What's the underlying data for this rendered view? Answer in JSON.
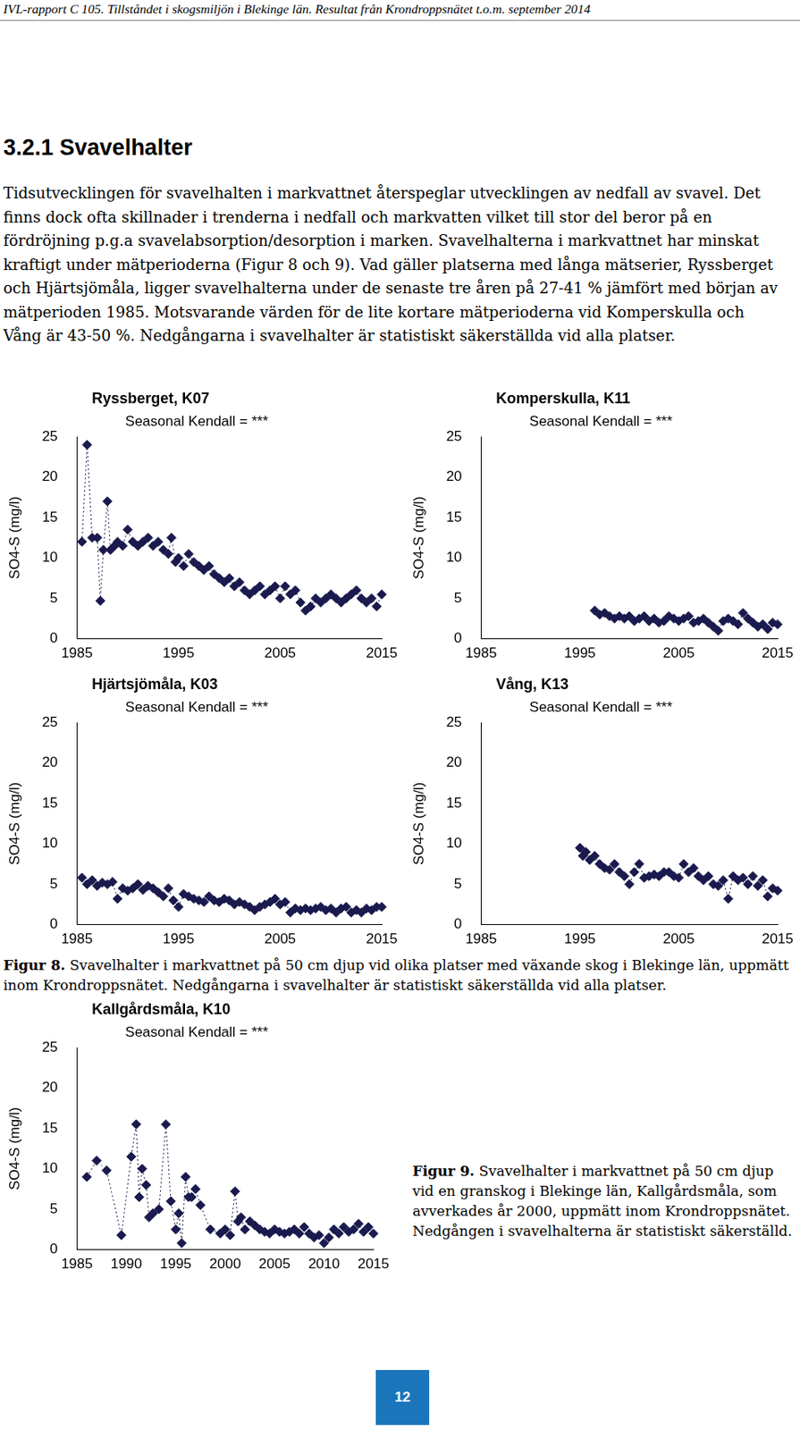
{
  "header": "IVL-rapport C 105. Tillståndet i skogsmiljön i Blekinge län. Resultat från Krondroppsnätet t.o.m. september 2014",
  "heading": "3.2.1 Svavelhalter",
  "paragraph": "Tidsutvecklingen för svavelhalten i markvattnet återspeglar utvecklingen av nedfall av svavel. Det finns dock ofta skillnader i trenderna i nedfall och markvatten vilket till stor del beror på en fördröjning p.g.a svavelabsorption/desorption i marken. Svavelhalterna i markvattnet har minskat kraftigt under mätperioderna (Figur 8 och 9). Vad gäller platserna med långa mätserier, Ryssberget och Hjärtsjömåla, ligger svavelhalterna under de senaste tre åren på 27-41 % jämfört med början av mätperioden 1985. Motsvarande värden för de lite kortare mätperioderna vid Komperskulla och Vång är 43-50 %. Nedgångarna i svavelhalter är statistiskt säkerställda vid alla platser.",
  "chart_data": [
    {
      "type": "line",
      "title": "Ryssberget, K07",
      "subtitle": "Seasonal Kendall = ***",
      "y_label": "SO4-S (mg/l)",
      "x": [
        1985.5,
        1986,
        1986.5,
        1987,
        1987.3,
        1987.6,
        1988,
        1988.3,
        1988.7,
        1989,
        1989.5,
        1990,
        1990.5,
        1991,
        1991.5,
        1992,
        1992.5,
        1993,
        1993.5,
        1994,
        1994.3,
        1994.7,
        1995,
        1995.5,
        1996,
        1996.5,
        1997,
        1997.5,
        1998,
        1998.5,
        1999,
        1999.5,
        2000,
        2000.5,
        2001,
        2001.5,
        2002,
        2002.5,
        2003,
        2003.5,
        2004,
        2004.5,
        2005,
        2005.5,
        2006,
        2006.5,
        2007,
        2007.5,
        2008,
        2008.5,
        2009,
        2009.5,
        2010,
        2010.5,
        2011,
        2011.5,
        2012,
        2012.5,
        2013,
        2013.5,
        2014,
        2014.5,
        2015
      ],
      "values": [
        12,
        24,
        12.5,
        12.5,
        4.7,
        11,
        17,
        11,
        11.5,
        12,
        11.5,
        13.5,
        12,
        11.5,
        12,
        12.5,
        11.5,
        12,
        11,
        10.5,
        12.5,
        9.5,
        10,
        9,
        10.5,
        9.5,
        9,
        8.5,
        9,
        8,
        7.5,
        7,
        7.5,
        6.5,
        7,
        6,
        5.5,
        6,
        6.5,
        5.5,
        6,
        6.5,
        5,
        6.5,
        5.5,
        6,
        4.5,
        3.5,
        4,
        5,
        4.5,
        5,
        5.5,
        5,
        4.5,
        5,
        5.5,
        6,
        5,
        4.5,
        5,
        4,
        5.5
      ],
      "xlim": [
        1985,
        2015
      ],
      "xticks": [
        1985,
        1995,
        2005,
        2015
      ],
      "ylim": [
        0,
        25
      ],
      "yticks": [
        0,
        5,
        10,
        15,
        20,
        25
      ],
      "grid": false,
      "color": "#1a1a4e",
      "marker": "diamond",
      "line_style": "dotted"
    },
    {
      "type": "line",
      "title": "Komperskulla, K11",
      "subtitle": "Seasonal Kendall = ***",
      "y_label": "SO4-S (mg/l)",
      "x": [
        1996.5,
        1997,
        1997.5,
        1998,
        1998.5,
        1999,
        1999.5,
        2000,
        2000.5,
        2001,
        2001.5,
        2002,
        2002.5,
        2003,
        2003.5,
        2004,
        2004.5,
        2005,
        2005.5,
        2006,
        2006.5,
        2007,
        2007.5,
        2008,
        2008.5,
        2009,
        2009.5,
        2010,
        2010.5,
        2011,
        2011.5,
        2012,
        2012.5,
        2013,
        2013.5,
        2014,
        2014.5,
        2015
      ],
      "values": [
        3.5,
        3,
        3.2,
        2.8,
        2.5,
        2.8,
        2.5,
        2.8,
        2.2,
        2.5,
        2.8,
        2.2,
        2.5,
        2,
        2.2,
        2.8,
        2.5,
        2.2,
        2.5,
        2.8,
        2,
        2.2,
        2.5,
        2,
        1.5,
        1,
        2.2,
        2.5,
        2.2,
        1.8,
        3.2,
        2.5,
        2,
        1.5,
        1.8,
        1.2,
        2,
        1.8
      ],
      "xlim": [
        1985,
        2015
      ],
      "xticks": [
        1985,
        1995,
        2005,
        2015
      ],
      "ylim": [
        0,
        25
      ],
      "yticks": [
        0,
        5,
        10,
        15,
        20,
        25
      ],
      "grid": false,
      "color": "#1a1a4e",
      "marker": "diamond",
      "line_style": "dotted"
    },
    {
      "type": "line",
      "title": "Hjärtsjömåla, K03",
      "subtitle": "Seasonal Kendall = ***",
      "y_label": "SO4-S (mg/l)",
      "x": [
        1985.5,
        1986,
        1986.5,
        1987,
        1987.5,
        1988,
        1988.5,
        1989,
        1989.5,
        1990,
        1990.5,
        1991,
        1991.5,
        1992,
        1992.5,
        1993,
        1993.5,
        1994,
        1994.5,
        1995,
        1995.5,
        1996,
        1996.5,
        1997,
        1997.5,
        1998,
        1998.5,
        1999,
        1999.5,
        2000,
        2000.5,
        2001,
        2001.5,
        2002,
        2002.5,
        2003,
        2003.5,
        2004,
        2004.5,
        2005,
        2005.5,
        2006,
        2006.5,
        2007,
        2007.5,
        2008,
        2008.5,
        2009,
        2009.5,
        2010,
        2010.5,
        2011,
        2011.5,
        2012,
        2012.5,
        2013,
        2013.5,
        2014,
        2014.5,
        2015
      ],
      "values": [
        5.8,
        5,
        5.5,
        4.8,
        5.2,
        5,
        5.3,
        3.2,
        4.5,
        4.2,
        4.5,
        5,
        4.3,
        4.8,
        4.5,
        4,
        3.5,
        4.5,
        3,
        2.2,
        3.8,
        3.5,
        3.2,
        3,
        2.8,
        3.5,
        3,
        2.8,
        3.2,
        3,
        2.5,
        2.8,
        2.5,
        2.2,
        1.8,
        2.2,
        2.5,
        2.8,
        3.2,
        2.5,
        2.8,
        1.5,
        2,
        1.8,
        2,
        1.8,
        2,
        2.2,
        1.8,
        2,
        1.5,
        2,
        2.2,
        1.5,
        1.8,
        1.5,
        2,
        1.8,
        2.2,
        2.2
      ],
      "xlim": [
        1985,
        2015
      ],
      "xticks": [
        1985,
        1995,
        2005,
        2015
      ],
      "ylim": [
        0,
        25
      ],
      "yticks": [
        0,
        5,
        10,
        15,
        20,
        25
      ],
      "grid": false,
      "color": "#1a1a4e",
      "marker": "diamond",
      "line_style": "dotted"
    },
    {
      "type": "line",
      "title": "Vång, K13",
      "subtitle": "Seasonal Kendall = ***",
      "y_label": "SO4-S (mg/l)",
      "x": [
        1995,
        1995.3,
        1995.6,
        1996,
        1996.5,
        1997,
        1997.5,
        1998,
        1998.5,
        1999,
        1999.5,
        2000,
        2000.5,
        2001,
        2001.5,
        2002,
        2002.5,
        2003,
        2003.5,
        2004,
        2004.5,
        2005,
        2005.5,
        2006,
        2006.5,
        2007,
        2007.5,
        2008,
        2008.5,
        2009,
        2009.5,
        2010,
        2010.5,
        2011,
        2011.5,
        2012,
        2012.5,
        2013,
        2013.5,
        2014,
        2014.5,
        2015
      ],
      "values": [
        9.5,
        8.5,
        9,
        8,
        8.5,
        7.5,
        7,
        6.8,
        7.5,
        6.5,
        6,
        5,
        6.5,
        7.5,
        5.8,
        6,
        6.2,
        6,
        6.5,
        6.5,
        6,
        5.8,
        7.5,
        6.5,
        7,
        6,
        5.5,
        6,
        5,
        4.8,
        5.5,
        3.2,
        6,
        5.5,
        5.8,
        5,
        6,
        4.8,
        5.5,
        3.5,
        4.5,
        4.2
      ],
      "xlim": [
        1985,
        2015
      ],
      "xticks": [
        1985,
        1995,
        2005,
        2015
      ],
      "ylim": [
        0,
        25
      ],
      "yticks": [
        0,
        5,
        10,
        15,
        20,
        25
      ],
      "grid": false,
      "color": "#1a1a4e",
      "marker": "diamond",
      "line_style": "dotted"
    },
    {
      "type": "line",
      "title": "Kallgårdsmåla, K10",
      "subtitle": "Seasonal Kendall = ***",
      "y_label": "SO4-S (mg/l)",
      "x": [
        1986,
        1987,
        1988,
        1989.5,
        1990.5,
        1991,
        1991.3,
        1991.6,
        1992,
        1992.3,
        1992.7,
        1993.3,
        1994,
        1994.5,
        1995,
        1995.3,
        1995.6,
        1996,
        1996.3,
        1996.6,
        1997,
        1997.5,
        1998.5,
        1999.5,
        2000,
        2000.5,
        2001,
        2001.3,
        2001.6,
        2002,
        2002.5,
        2003,
        2003.5,
        2004,
        2004.5,
        2005,
        2005.5,
        2006,
        2006.5,
        2007,
        2007.5,
        2008,
        2008.5,
        2009,
        2009.5,
        2010,
        2010.5,
        2011,
        2011.5,
        2012,
        2012.5,
        2013,
        2013.5,
        2014,
        2014.5,
        2015
      ],
      "values": [
        9,
        11,
        9.8,
        1.8,
        11.5,
        15.5,
        6.5,
        10,
        8,
        4,
        4.5,
        5,
        15.5,
        6,
        2.5,
        4.5,
        0.8,
        9,
        6.5,
        6.5,
        7.5,
        5.5,
        2.5,
        2,
        2.5,
        1.8,
        7.2,
        3.5,
        4,
        2.5,
        3.5,
        3,
        2.5,
        2.2,
        2,
        2.5,
        2.2,
        2,
        2.2,
        2.5,
        2,
        2.8,
        2,
        1.5,
        1.8,
        0.8,
        1.5,
        2.5,
        2,
        2.8,
        2.2,
        2.5,
        3.2,
        2.2,
        2.8,
        2
      ],
      "xlim": [
        1985,
        2015
      ],
      "xticks": [
        1985,
        1990,
        1995,
        2000,
        2005,
        2010,
        2015
      ],
      "ylim": [
        0,
        25
      ],
      "yticks": [
        0,
        5,
        10,
        15,
        20,
        25
      ],
      "grid": false,
      "color": "#1a1a4e",
      "marker": "diamond",
      "line_style": "dotted"
    }
  ],
  "figure_captions": [
    {
      "label": "Figur 8.",
      "text": "Svavelhalter i markvattnet på 50 cm djup vid olika platser med växande skog i Blekinge län, uppmätt inom Krondroppsnätet. Nedgångarna i svavelhalter är statistiskt säkerställda vid alla platser."
    },
    {
      "label": "Figur 9.",
      "text": "Svavelhalter i markvattnet på 50 cm djup vid en granskog i Blekinge län, Kallgårdsmåla, som avverkades år 2000, uppmätt inom Krondroppsnätet. Nedgången i svavelhalterna är statistiskt säkerställd."
    }
  ],
  "page_number": 12
}
